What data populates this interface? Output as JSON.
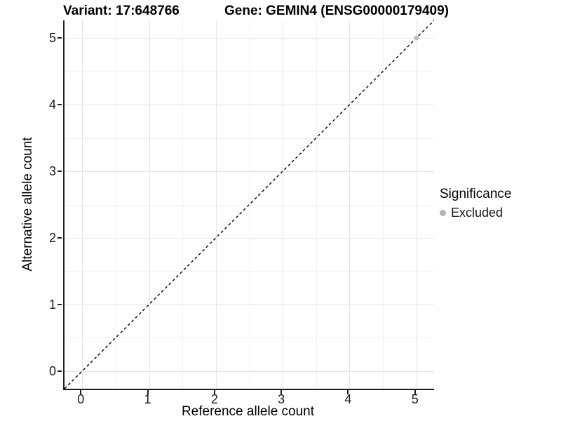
{
  "chart_data": {
    "type": "scatter",
    "title_left": "Variant: 17:648766",
    "title_right": "Gene: GEMIN4 (ENSG00000179409)",
    "xlabel": "Reference allele count",
    "ylabel": "Alternative allele count",
    "x_ticks": [
      0,
      1,
      2,
      3,
      4,
      5
    ],
    "y_ticks": [
      0,
      1,
      2,
      3,
      4,
      5
    ],
    "x_minor": [
      0.5,
      1.5,
      2.5,
      3.5,
      4.5
    ],
    "y_minor": [
      0.5,
      1.5,
      2.5,
      3.5,
      4.5
    ],
    "xlim": [
      -0.265,
      5.265
    ],
    "ylim": [
      -0.265,
      5.265
    ],
    "grid": true,
    "reference_line": {
      "name": "identity-line",
      "style": "dashed",
      "color": "#000000",
      "from": [
        -0.265,
        -0.265
      ],
      "to": [
        5.265,
        5.265
      ]
    },
    "points": [
      {
        "x": 5,
        "y": 5,
        "series": "Excluded",
        "color": "#bebebe",
        "radius": 3.5
      }
    ],
    "legend": {
      "title": "Significance",
      "position": "right",
      "items": [
        {
          "label": "Excluded",
          "color": "#b4b4b4",
          "marker": "circle"
        }
      ]
    },
    "colors": {
      "axis_line": "#1f1f1f",
      "grid_major": "#e4e4e4",
      "grid_minor": "#f0f0f0",
      "panel_background": "#ffffff",
      "text": "#000000"
    }
  }
}
